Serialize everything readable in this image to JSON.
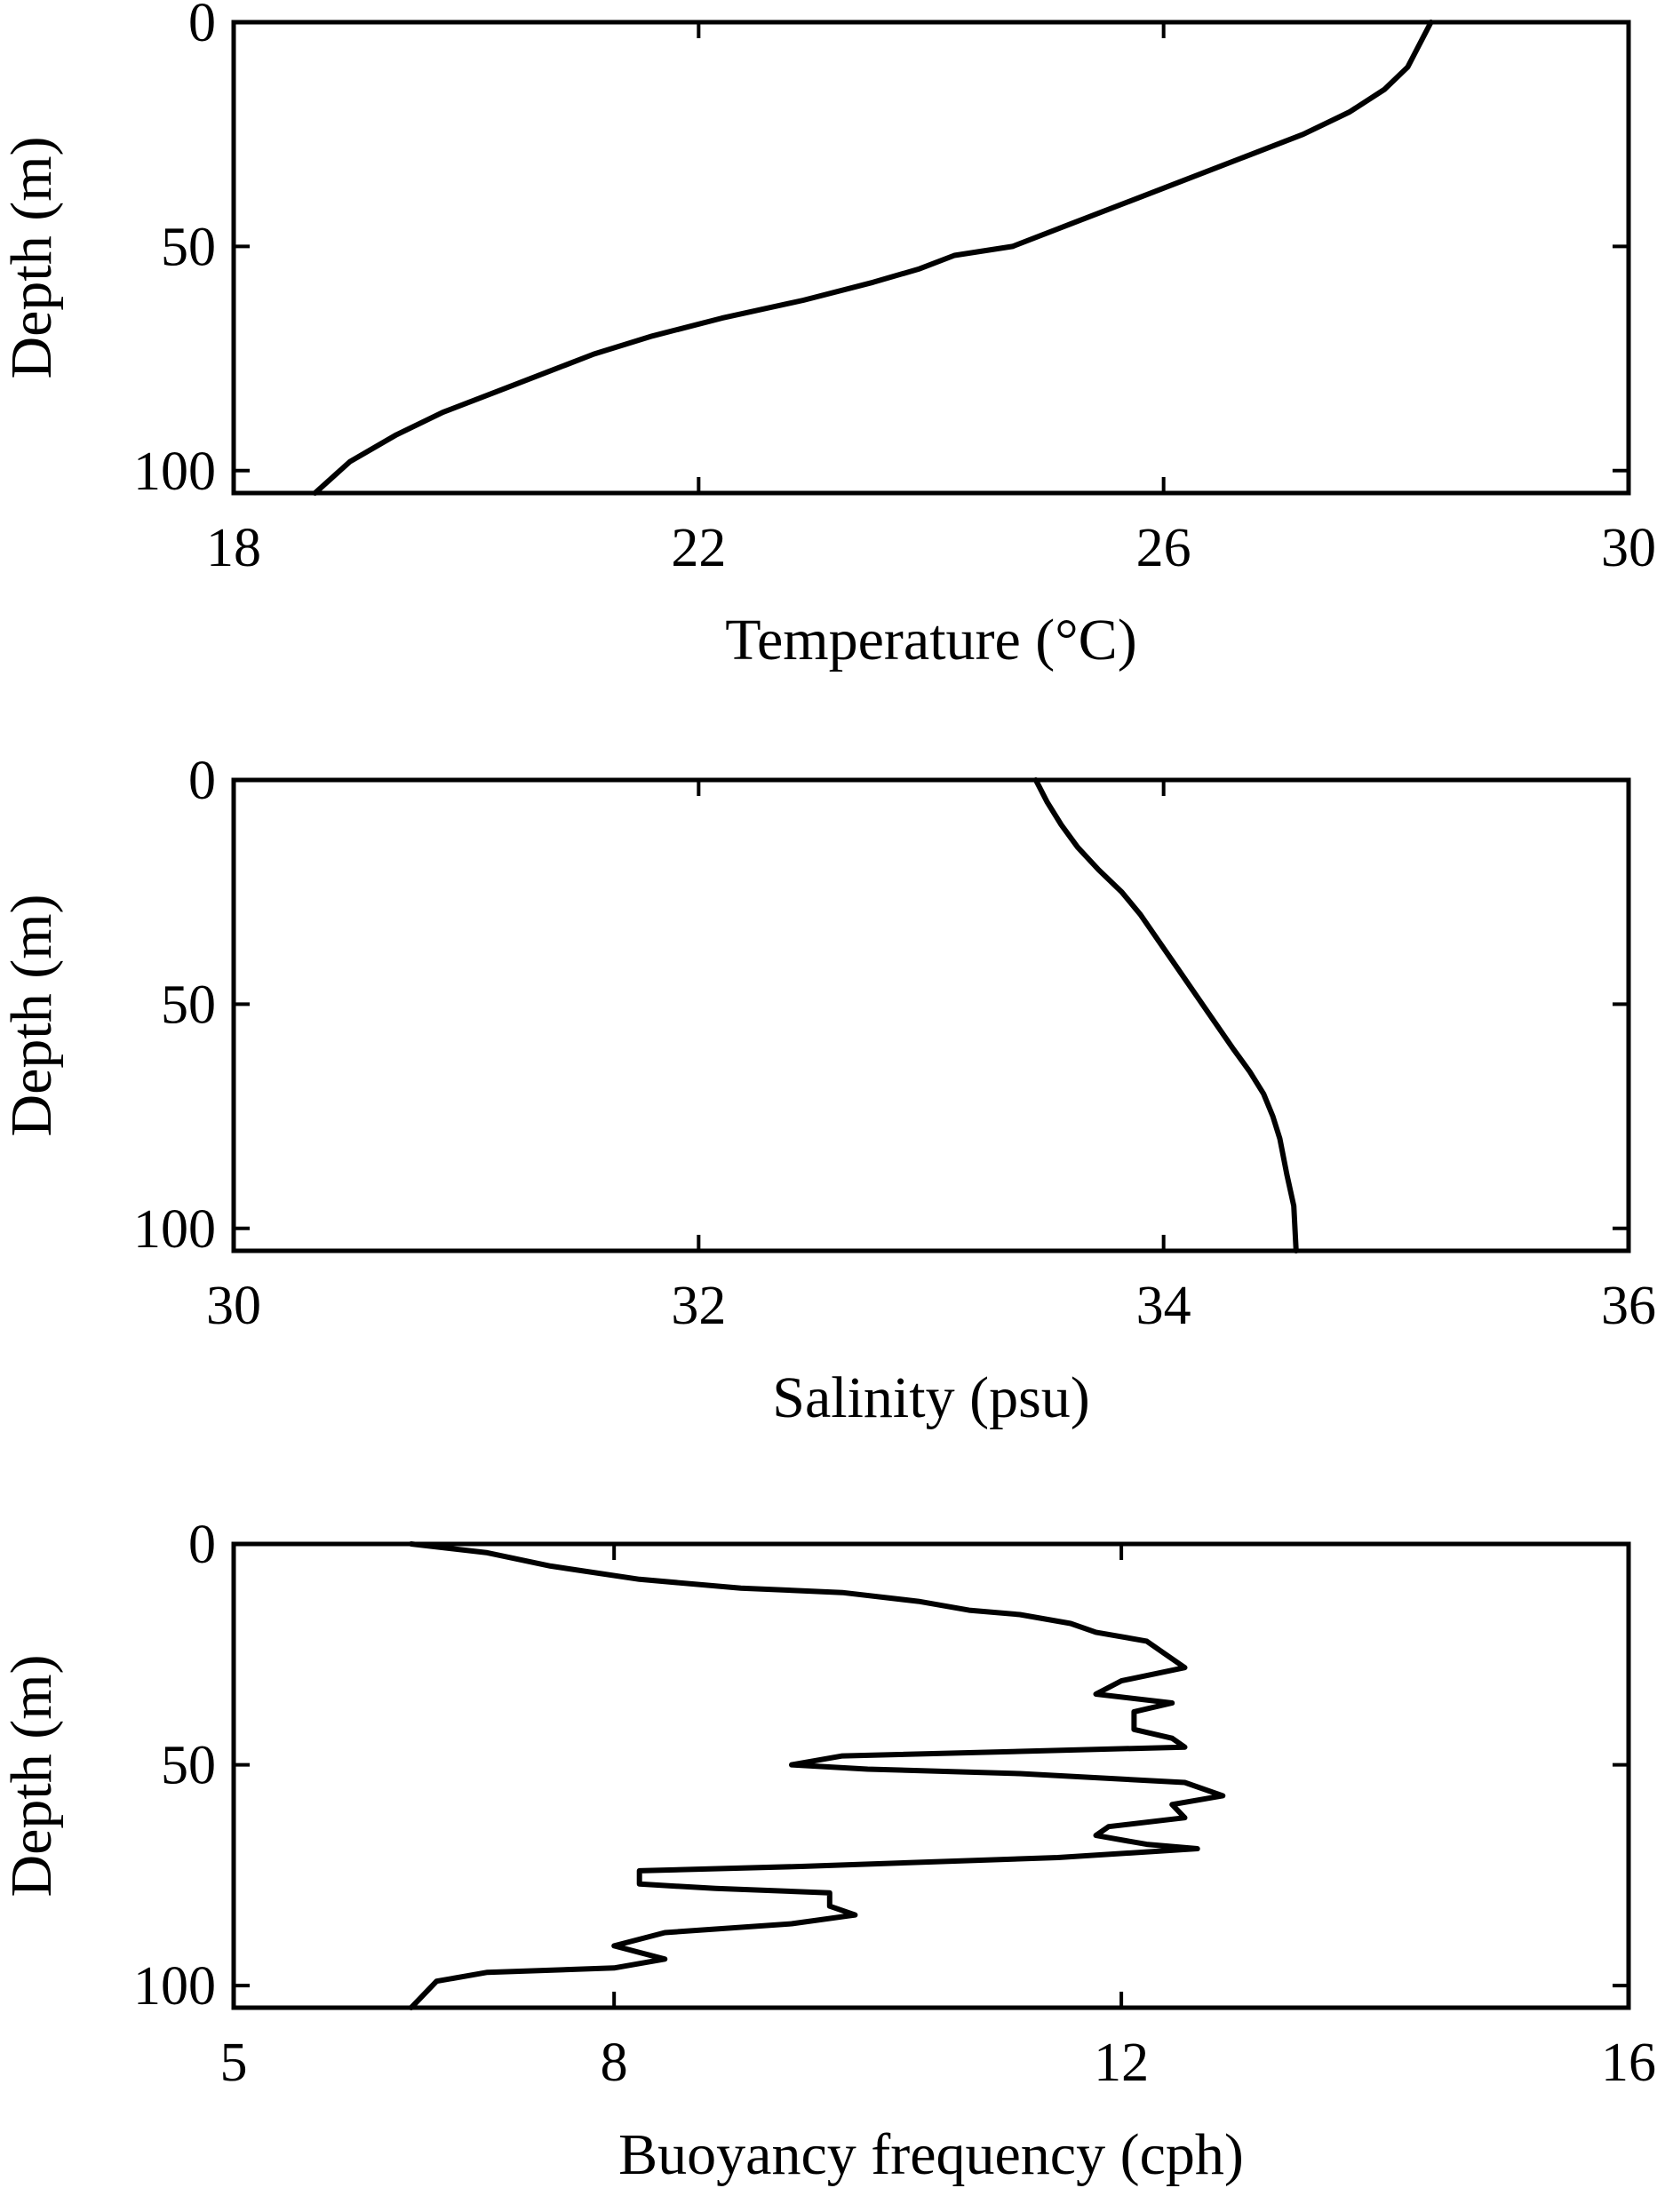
{
  "colors": {
    "line": "#000000",
    "axis": "#000000",
    "background": "#ffffff"
  },
  "chart_data": [
    {
      "type": "line",
      "xlabel": "Temperature (°C)",
      "ylabel": "Depth (m)",
      "xlim": [
        18,
        30
      ],
      "ylim": [
        0,
        105
      ],
      "xticks": [
        "18",
        "22",
        "26",
        "30"
      ],
      "yticks": [
        "0",
        "50",
        "100"
      ],
      "y_reversed": true,
      "series": [
        {
          "name": "temperature",
          "x": [
            28.3,
            28.2,
            28.1,
            27.9,
            27.6,
            27.2,
            26.7,
            26.2,
            25.7,
            25.2,
            24.7,
            24.2,
            23.9,
            23.5,
            22.9,
            22.2,
            21.6,
            21.1,
            20.7,
            20.3,
            19.8,
            19.4,
            19.0,
            18.7
          ],
          "y": [
            0,
            5,
            10,
            15,
            20,
            25,
            30,
            35,
            40,
            45,
            50,
            52,
            55,
            58,
            62,
            66,
            70,
            74,
            78,
            82,
            87,
            92,
            98,
            105
          ]
        }
      ]
    },
    {
      "type": "line",
      "xlabel": "Salinity (psu)",
      "ylabel": "Depth (m)",
      "xlim": [
        30,
        36
      ],
      "ylim": [
        0,
        105
      ],
      "xticks": [
        "30",
        "32",
        "34",
        "36"
      ],
      "yticks": [
        "0",
        "50",
        "100"
      ],
      "y_reversed": true,
      "series": [
        {
          "name": "salinity",
          "x": [
            33.45,
            33.5,
            33.56,
            33.63,
            33.72,
            33.82,
            33.9,
            33.98,
            34.06,
            34.14,
            34.22,
            34.3,
            34.37,
            34.43,
            34.47,
            34.5,
            34.53,
            34.56,
            34.57
          ],
          "y": [
            0,
            5,
            10,
            15,
            20,
            25,
            30,
            36,
            42,
            48,
            54,
            60,
            65,
            70,
            75,
            80,
            88,
            95,
            105
          ]
        }
      ]
    },
    {
      "type": "line",
      "xlabel": "Buoyancy frequency (cph)",
      "ylabel": "Depth (m)",
      "xlim": [
        5,
        16
      ],
      "ylim": [
        0,
        105
      ],
      "xticks": [
        "5",
        "8",
        "12",
        "16"
      ],
      "yticks": [
        "0",
        "50",
        "100"
      ],
      "y_reversed": true,
      "series": [
        {
          "name": "buoyancy_frequency",
          "x": [
            6.4,
            7.0,
            7.5,
            8.2,
            9.0,
            9.8,
            10.4,
            10.8,
            11.2,
            11.6,
            11.8,
            12.2,
            12.35,
            12.5,
            12.0,
            11.8,
            12.4,
            12.1,
            12.1,
            12.4,
            12.5,
            9.8,
            9.4,
            10.0,
            11.2,
            12.5,
            12.8,
            12.4,
            12.5,
            11.9,
            11.8,
            12.2,
            12.6,
            11.5,
            9.5,
            8.2,
            8.2,
            8.8,
            9.7,
            9.7,
            9.9,
            9.4,
            8.4,
            8.0,
            8.4,
            8.0,
            7.0,
            6.6,
            6.4
          ],
          "y": [
            0,
            2,
            5,
            8,
            10,
            11,
            13,
            15,
            16,
            18,
            20,
            22,
            25,
            28,
            31,
            34,
            36,
            38,
            42,
            44,
            46,
            48,
            50,
            51,
            52,
            54,
            57,
            59,
            62,
            64,
            66,
            68,
            69,
            71,
            73,
            74,
            77,
            78,
            79,
            82,
            84,
            86,
            88,
            91,
            94,
            96,
            97,
            99,
            105
          ]
        }
      ]
    }
  ]
}
